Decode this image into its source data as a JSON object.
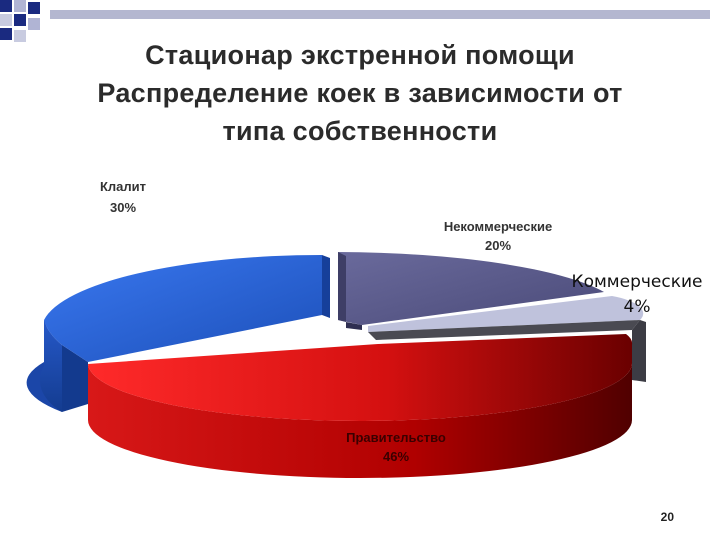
{
  "slide": {
    "title_lines": [
      "Стационар экстренной помощи",
      "Распределение коек в зависимости от",
      "типа собственности"
    ],
    "page_number": "20"
  },
  "chart_data": {
    "type": "pie",
    "title": "",
    "slices": [
      {
        "name": "Некоммерческие",
        "label": "20%",
        "value": 20,
        "color": "#5b5b8c"
      },
      {
        "name": "Коммерческие",
        "label": "4%",
        "value": 4,
        "color": "#b9bcd6"
      },
      {
        "name": "Правительство",
        "label": "46%",
        "value": 46,
        "color": "#e01010"
      },
      {
        "name": "Клалит",
        "label": "30%",
        "value": 30,
        "color": "#2e68d8"
      }
    ],
    "legend": "none"
  }
}
